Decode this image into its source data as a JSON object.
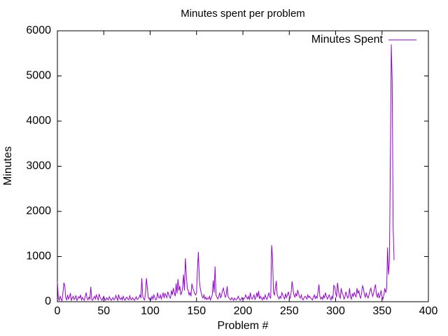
{
  "chart_data": {
    "type": "line",
    "title": "Minutes spent per problem",
    "xlabel": "Problem #",
    "ylabel": "Minutes",
    "xlim": [
      0,
      400
    ],
    "xticks": [
      0,
      50,
      100,
      150,
      200,
      250,
      300,
      350,
      400
    ],
    "ylim": [
      0,
      6000
    ],
    "yticks": [
      0,
      1000,
      2000,
      3000,
      4000,
      5000,
      6000
    ],
    "legend": "upper right",
    "series": [
      {
        "name": "Minutes Spent",
        "color": "#9400d3",
        "x": [
          0,
          1,
          2,
          3,
          4,
          5,
          6,
          7,
          8,
          9,
          10,
          11,
          12,
          13,
          14,
          15,
          16,
          17,
          18,
          19,
          20,
          21,
          22,
          23,
          24,
          25,
          26,
          27,
          28,
          29,
          30,
          31,
          32,
          33,
          34,
          35,
          36,
          37,
          38,
          39,
          40,
          41,
          42,
          43,
          44,
          45,
          46,
          47,
          48,
          49,
          50,
          51,
          52,
          53,
          54,
          55,
          56,
          57,
          58,
          59,
          60,
          61,
          62,
          63,
          64,
          65,
          66,
          67,
          68,
          69,
          70,
          71,
          72,
          73,
          74,
          75,
          76,
          77,
          78,
          79,
          80,
          81,
          82,
          83,
          84,
          85,
          86,
          87,
          88,
          89,
          90,
          91,
          92,
          93,
          94,
          95,
          96,
          97,
          98,
          99,
          100,
          101,
          102,
          103,
          104,
          105,
          106,
          107,
          108,
          109,
          110,
          111,
          112,
          113,
          114,
          115,
          116,
          117,
          118,
          119,
          120,
          121,
          122,
          123,
          124,
          125,
          126,
          127,
          128,
          129,
          130,
          131,
          132,
          133,
          134,
          135,
          136,
          137,
          138,
          139,
          140,
          141,
          142,
          143,
          144,
          145,
          146,
          147,
          148,
          149,
          150,
          151,
          152,
          153,
          154,
          155,
          156,
          157,
          158,
          159,
          160,
          161,
          162,
          163,
          164,
          165,
          166,
          167,
          168,
          169,
          170,
          171,
          172,
          173,
          174,
          175,
          176,
          177,
          178,
          179,
          180,
          181,
          182,
          183,
          184,
          185,
          186,
          187,
          188,
          189,
          190,
          191,
          192,
          193,
          194,
          195,
          196,
          197,
          198,
          199,
          200,
          201,
          202,
          203,
          204,
          205,
          206,
          207,
          208,
          209,
          210,
          211,
          212,
          213,
          214,
          215,
          216,
          217,
          218,
          219,
          220,
          221,
          222,
          223,
          224,
          225,
          226,
          227,
          228,
          229,
          230,
          231,
          232,
          233,
          234,
          235,
          236,
          237,
          238,
          239,
          240,
          241,
          242,
          243,
          244,
          245,
          246,
          247,
          248,
          249,
          250,
          251,
          252,
          253,
          254,
          255,
          256,
          257,
          258,
          259,
          260,
          261,
          262,
          263,
          264,
          265,
          266,
          267,
          268,
          269,
          270,
          271,
          272,
          273,
          274,
          275,
          276,
          277,
          278,
          279,
          280,
          281,
          282,
          283,
          284,
          285,
          286,
          287,
          288,
          289,
          290,
          291,
          292,
          293,
          294,
          295,
          296,
          297,
          298,
          299,
          300,
          301,
          302,
          303,
          304,
          305,
          306,
          307,
          308,
          309,
          310,
          311,
          312,
          313,
          314,
          315,
          316,
          317,
          318,
          319,
          320,
          321,
          322,
          323,
          324,
          325,
          326,
          327,
          328,
          329,
          330,
          331,
          332,
          333,
          334,
          335,
          336,
          337,
          338,
          339,
          340,
          341,
          342,
          343,
          344,
          345,
          346,
          347,
          348,
          349,
          350,
          351,
          352,
          353,
          354,
          355,
          356,
          357,
          358,
          359,
          360,
          361,
          362,
          363
        ],
        "values": [
          450,
          80,
          30,
          120,
          60,
          20,
          200,
          420,
          350,
          90,
          40,
          150,
          60,
          100,
          190,
          30,
          80,
          120,
          50,
          70,
          140,
          30,
          60,
          110,
          80,
          150,
          40,
          90,
          60,
          30,
          120,
          200,
          70,
          40,
          100,
          60,
          330,
          50,
          30,
          80,
          120,
          60,
          150,
          90,
          40,
          170,
          100,
          60,
          30,
          80,
          120,
          50,
          30,
          90,
          60,
          40,
          110,
          70,
          30,
          60,
          90,
          40,
          60,
          140,
          80,
          30,
          160,
          70,
          50,
          90,
          40,
          120,
          60,
          30,
          80,
          100,
          50,
          40,
          130,
          60,
          40,
          90,
          60,
          30,
          70,
          110,
          50,
          60,
          90,
          150,
          80,
          520,
          120,
          60,
          40,
          200,
          520,
          300,
          90,
          60,
          80,
          40,
          120,
          60,
          150,
          90,
          40,
          60,
          200,
          100,
          80,
          150,
          60,
          120,
          200,
          80,
          180,
          140,
          90,
          220,
          160,
          100,
          80,
          250,
          150,
          300,
          200,
          120,
          400,
          180,
          500,
          250,
          350,
          150,
          200,
          300,
          600,
          250,
          960,
          600,
          300,
          250,
          150,
          200,
          120,
          400,
          300,
          250,
          180,
          150,
          200,
          700,
          1100,
          500,
          300,
          200,
          120,
          80,
          150,
          60,
          100,
          50,
          80,
          60,
          120,
          40,
          90,
          150,
          470,
          200,
          780,
          150,
          100,
          60,
          120,
          200,
          80,
          140,
          250,
          300,
          180,
          100,
          150,
          340,
          120,
          80,
          60,
          40,
          90,
          60,
          30,
          80,
          50,
          40,
          70,
          120,
          60,
          30,
          50,
          90,
          40,
          60,
          80,
          150,
          100,
          60,
          120,
          40,
          200,
          80,
          60,
          100,
          150,
          50,
          90,
          200,
          100,
          240,
          60,
          120,
          80,
          40,
          100,
          60,
          150,
          80,
          50,
          120,
          200,
          100,
          80,
          1250,
          950,
          200,
          150,
          300,
          460,
          150,
          100,
          60,
          120,
          80,
          200,
          150,
          100,
          60,
          180,
          90,
          150,
          220,
          120,
          80,
          200,
          450,
          300,
          150,
          100,
          180,
          120,
          250,
          200,
          100,
          80,
          150,
          60,
          40,
          90,
          120,
          100,
          60,
          150,
          90,
          120,
          80,
          60,
          40,
          100,
          150,
          70,
          120,
          80,
          220,
          380,
          120,
          60,
          100,
          50,
          140,
          80,
          200,
          120,
          60,
          100,
          150,
          80,
          40,
          120,
          60,
          360,
          330,
          200,
          100,
          420,
          250,
          120,
          80,
          300,
          180,
          150,
          60,
          100,
          220,
          150,
          80,
          120,
          300,
          100,
          60,
          180,
          120,
          200,
          150,
          100,
          300,
          180,
          250,
          120,
          80,
          200,
          350,
          300,
          150,
          100,
          200,
          120,
          80,
          150,
          250,
          300,
          180,
          120,
          200,
          300,
          380,
          150,
          100,
          200,
          80,
          150,
          250,
          120,
          60,
          150,
          300,
          200,
          280,
          1200,
          600,
          900,
          3100,
          5700,
          4850,
          1650,
          920
        ]
      }
    ]
  }
}
